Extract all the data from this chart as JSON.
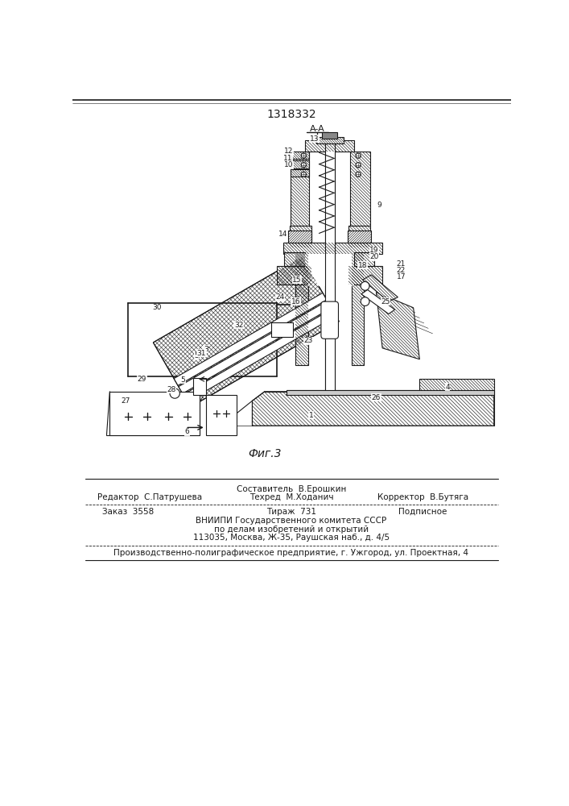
{
  "title_number": "1318332",
  "section_label": "A-A",
  "fig_label": "Фиг.3",
  "bg_color": "#ffffff",
  "line_color": "#1a1a1a",
  "footer": {
    "editor": "Редактор  С.Патрушева",
    "composer": "Составитель  В.Ерошкин",
    "techred": "Техред  М.Ходанич",
    "corrector": "Корректор  В.Бутяга",
    "order": "Заказ  3558",
    "tirazh": "Тираж  731",
    "podpisnoe": "Подписное",
    "vniipи": "ВНИИПИ Государственного комитета СССР",
    "po_delam": "по делам изобретений и открытий",
    "address": "113035, Москва, Ж-35, Раушская наб., д. 4/5",
    "production": "Производственно-полиграфическое предприятие, г. Ужгород, ул. Проектная, 4"
  }
}
